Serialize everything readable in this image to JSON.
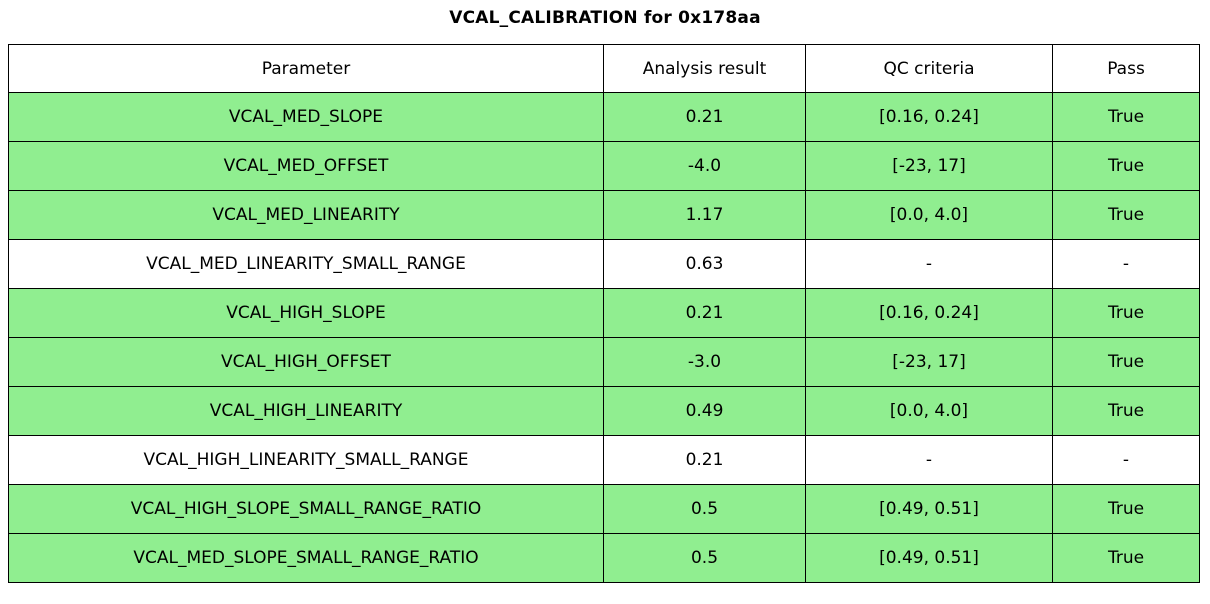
{
  "colors": {
    "pass_row_bg": "#90ee90",
    "neutral_row_bg": "#ffffff",
    "border": "#000000",
    "text": "#000000"
  },
  "chart_data": {
    "type": "table",
    "title": "VCAL_CALIBRATION for 0x178aa",
    "columns": [
      "Parameter",
      "Analysis result",
      "QC criteria",
      "Pass"
    ],
    "rows": [
      {
        "parameter": "VCAL_MED_SLOPE",
        "result": "0.21",
        "criteria": "[0.16, 0.24]",
        "pass": "True",
        "highlight": true
      },
      {
        "parameter": "VCAL_MED_OFFSET",
        "result": "-4.0",
        "criteria": "[-23, 17]",
        "pass": "True",
        "highlight": true
      },
      {
        "parameter": "VCAL_MED_LINEARITY",
        "result": "1.17",
        "criteria": "[0.0, 4.0]",
        "pass": "True",
        "highlight": true
      },
      {
        "parameter": "VCAL_MED_LINEARITY_SMALL_RANGE",
        "result": "0.63",
        "criteria": "-",
        "pass": "-",
        "highlight": false
      },
      {
        "parameter": "VCAL_HIGH_SLOPE",
        "result": "0.21",
        "criteria": "[0.16, 0.24]",
        "pass": "True",
        "highlight": true
      },
      {
        "parameter": "VCAL_HIGH_OFFSET",
        "result": "-3.0",
        "criteria": "[-23, 17]",
        "pass": "True",
        "highlight": true
      },
      {
        "parameter": "VCAL_HIGH_LINEARITY",
        "result": "0.49",
        "criteria": "[0.0, 4.0]",
        "pass": "True",
        "highlight": true
      },
      {
        "parameter": "VCAL_HIGH_LINEARITY_SMALL_RANGE",
        "result": "0.21",
        "criteria": "-",
        "pass": "-",
        "highlight": false
      },
      {
        "parameter": "VCAL_HIGH_SLOPE_SMALL_RANGE_RATIO",
        "result": "0.5",
        "criteria": "[0.49, 0.51]",
        "pass": "True",
        "highlight": true
      },
      {
        "parameter": "VCAL_MED_SLOPE_SMALL_RANGE_RATIO",
        "result": "0.5",
        "criteria": "[0.49, 0.51]",
        "pass": "True",
        "highlight": true
      }
    ]
  }
}
